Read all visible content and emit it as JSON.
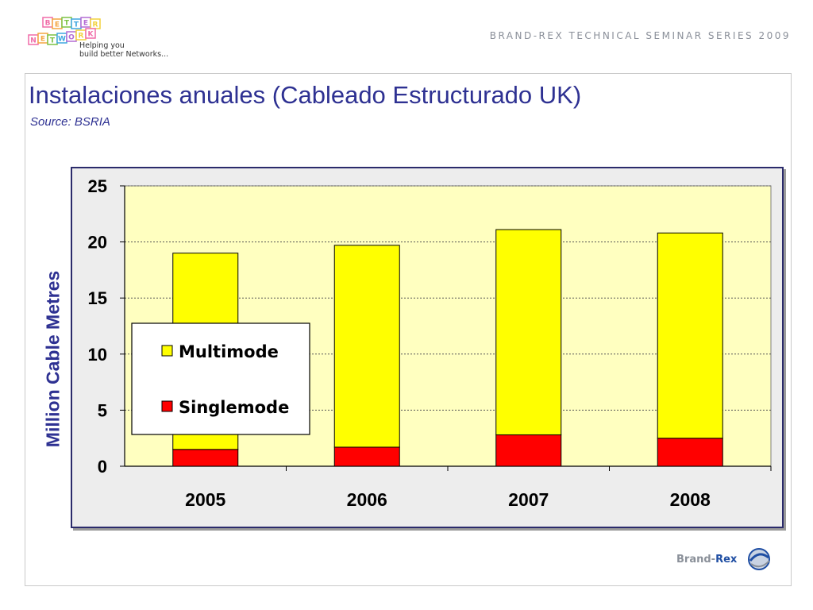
{
  "header": {
    "logo_letters": [
      "B",
      "E",
      "T",
      "T",
      "E",
      "R",
      "N",
      "E",
      "T",
      "W",
      "O",
      "R",
      "K"
    ],
    "logo_tagline_1": "Helping you",
    "logo_tagline_2": "build better Networks...",
    "series_title": "BRAND-REX TECHNICAL SEMINAR SERIES 2009"
  },
  "slide": {
    "title": "Instalaciones anuales (Cableado Estructurado UK)",
    "subtitle": "Source: BSRIA"
  },
  "footer": {
    "brand_part1": "Brand-",
    "brand_part2": "Rex"
  },
  "colors": {
    "title": "#2e3192",
    "multimode": "#ffff00",
    "singlemode": "#ff0000",
    "plot_bg": "#ffffc0",
    "chart_bg": "#ededed"
  },
  "chart_data": {
    "type": "bar",
    "stacked": true,
    "categories": [
      "2005",
      "2006",
      "2007",
      "2008"
    ],
    "series": [
      {
        "name": "Singlemode",
        "values": [
          1.5,
          1.7,
          2.8,
          2.5
        ],
        "color": "#ff0000"
      },
      {
        "name": "Multimode",
        "values": [
          17.5,
          18.0,
          18.3,
          18.3
        ],
        "color": "#ffff00"
      }
    ],
    "title": "",
    "xlabel": "",
    "ylabel": "Million Cable Metres",
    "ylim": [
      0,
      25
    ],
    "yticks": [
      0,
      5,
      10,
      15,
      20,
      25
    ],
    "grid": true,
    "legend": {
      "placement": "inside-left",
      "entries": [
        "Multimode",
        "Singlemode"
      ]
    }
  }
}
